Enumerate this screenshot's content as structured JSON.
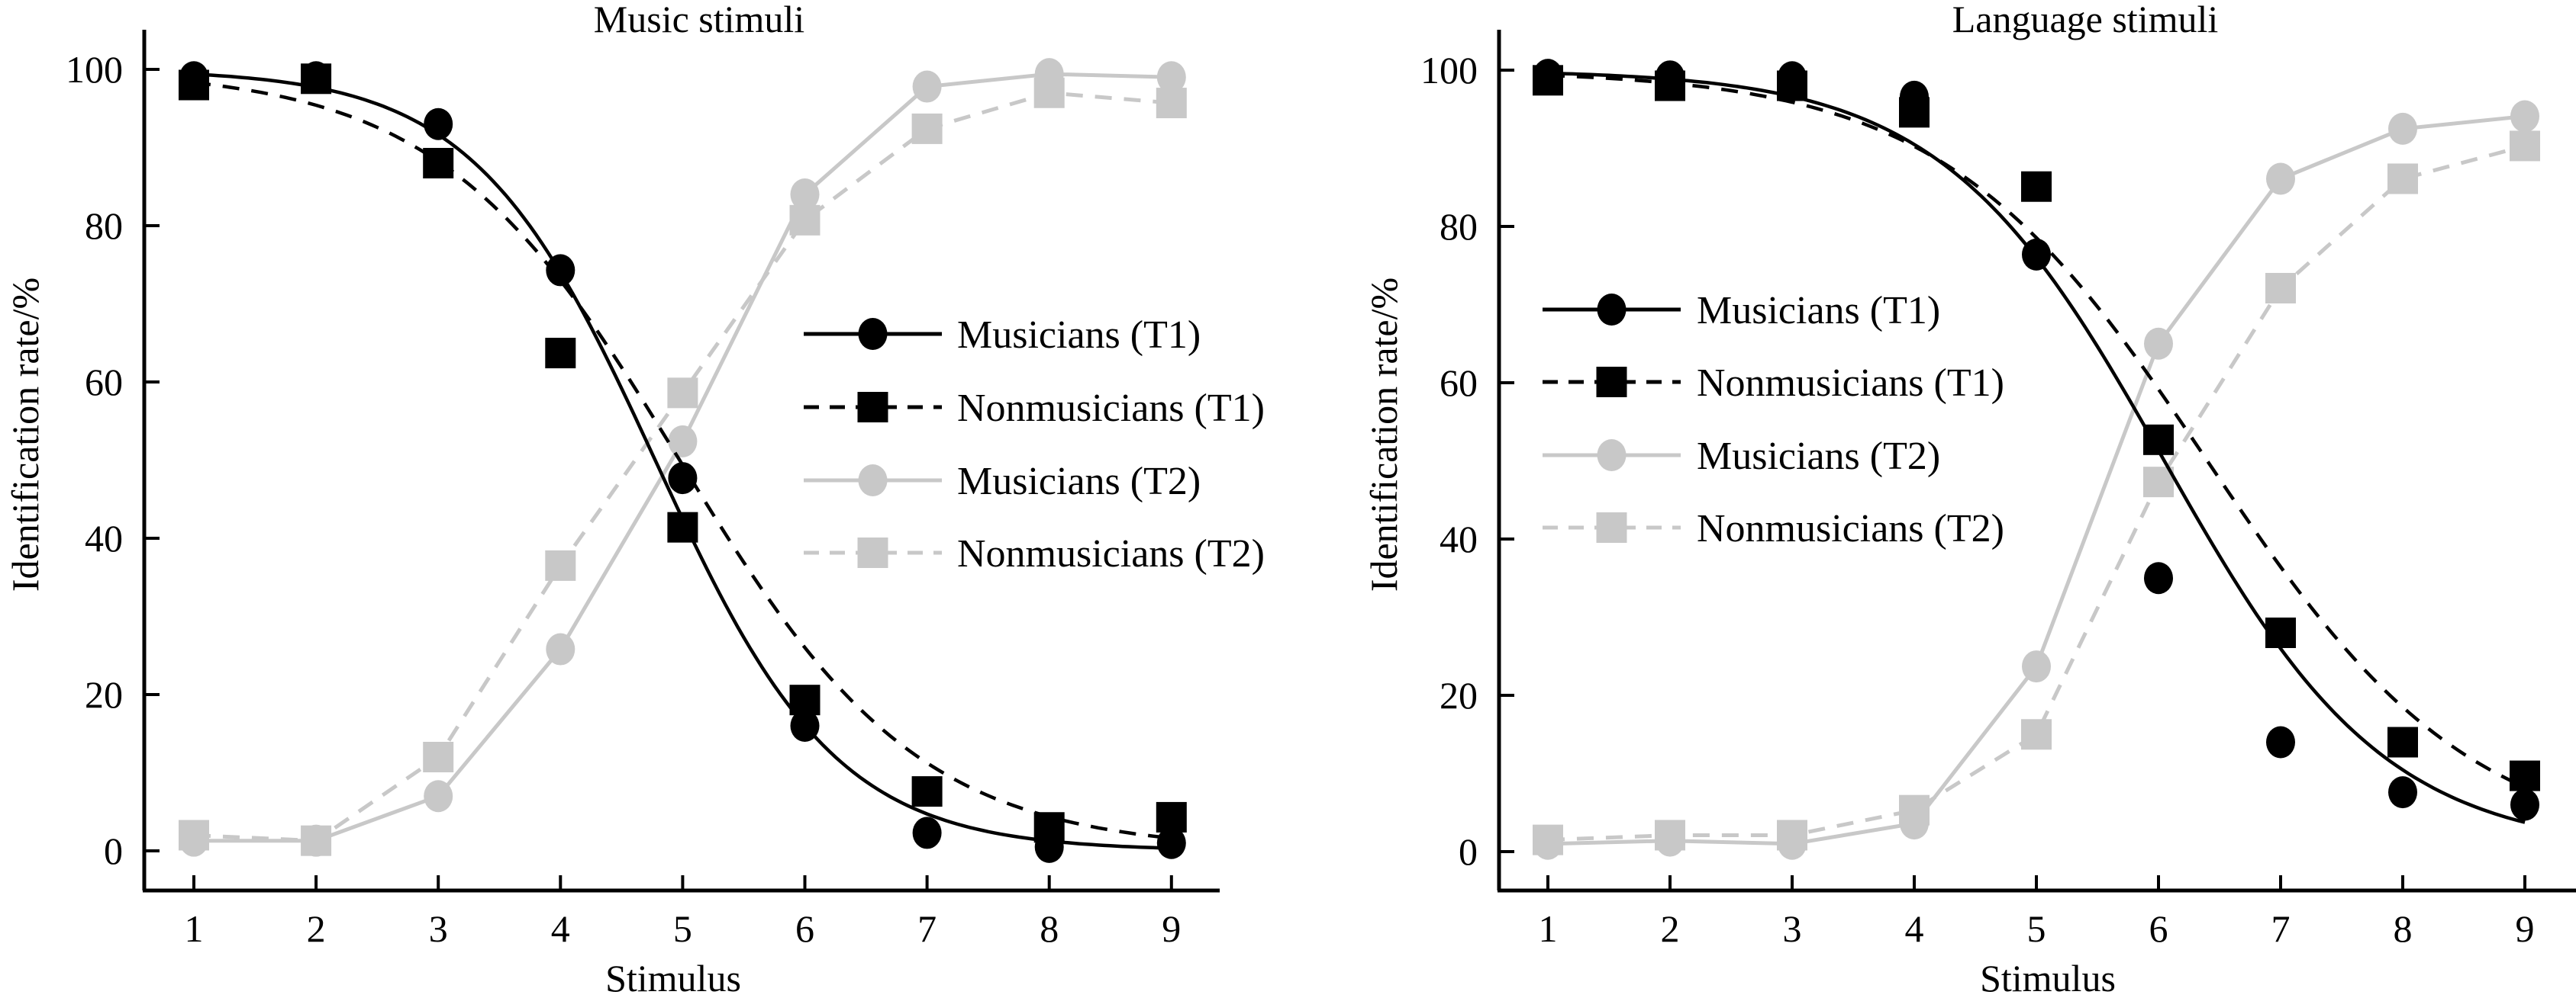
{
  "colors": {
    "t1": "#000000",
    "t2": "#c8c8c8",
    "background": "#ffffff"
  },
  "chart_data": [
    {
      "type": "line",
      "title": "Music stimuli",
      "xlabel": "Stimulus",
      "ylabel": "Identification rate/%",
      "x": [
        1,
        2,
        3,
        4,
        5,
        6,
        7,
        8,
        9
      ],
      "xticks": [
        "1",
        "2",
        "3",
        "4",
        "5",
        "6",
        "7",
        "8",
        "9"
      ],
      "yticks": [
        "0",
        "20",
        "40",
        "60",
        "80",
        "100"
      ],
      "ytick_values": [
        0,
        20,
        40,
        60,
        80,
        100
      ],
      "ylim": [
        -5,
        105
      ],
      "xlim": [
        0.6,
        9.9
      ],
      "grid": false,
      "legend_position": "center-right",
      "series": [
        {
          "name": "Musicians (T1)",
          "group": "t1",
          "marker": "circle",
          "line": "solid",
          "connect": "fit",
          "values": [
            99,
            99,
            93,
            74.3,
            47.7,
            16,
            2.3,
            0.5,
            1
          ],
          "fit": {
            "model": "logistic-decreasing",
            "midpoint": 4.775,
            "slope": 1.35,
            "max": 100
          }
        },
        {
          "name": "Nonmusicians (T1)",
          "group": "t1",
          "marker": "square",
          "line": "dashed",
          "connect": "fit",
          "values": [
            98,
            98.8,
            88,
            63.7,
            41.4,
            19.3,
            7.6,
            3,
            4.3
          ],
          "fit": {
            "model": "logistic-decreasing",
            "midpoint": 4.975,
            "slope": 1.02,
            "max": 100
          }
        },
        {
          "name": "Musicians (T2)",
          "group": "t2",
          "marker": "circle",
          "line": "solid",
          "connect": "points",
          "values": [
            1.3,
            1.3,
            7,
            25.8,
            52.4,
            84,
            97.8,
            99.4,
            99
          ]
        },
        {
          "name": "Nonmusicians (T2)",
          "group": "t2",
          "marker": "square",
          "line": "dashed",
          "connect": "points",
          "values": [
            2,
            1.3,
            12,
            36.5,
            58.6,
            80.7,
            92.4,
            97,
            95.7
          ]
        }
      ]
    },
    {
      "type": "line",
      "title": "Language stimuli",
      "xlabel": "Stimulus",
      "ylabel": "Identification rate/%",
      "x": [
        1,
        2,
        3,
        4,
        5,
        6,
        7,
        8,
        9
      ],
      "xticks": [
        "1",
        "2",
        "3",
        "4",
        "5",
        "6",
        "7",
        "8",
        "9"
      ],
      "yticks": [
        "0",
        "20",
        "40",
        "60",
        "80",
        "100"
      ],
      "ytick_values": [
        0,
        20,
        40,
        60,
        80,
        100
      ],
      "ylim": [
        -5,
        105
      ],
      "xlim": [
        0.6,
        10.0
      ],
      "grid": false,
      "legend_position": "center-left",
      "series": [
        {
          "name": "Musicians (T1)",
          "group": "t1",
          "marker": "circle",
          "line": "solid",
          "connect": "fit",
          "values": [
            99.4,
            99.2,
            99.1,
            96.6,
            76.4,
            35,
            14,
            7.6,
            6
          ],
          "fit": {
            "model": "logistic-decreasing",
            "midpoint": 6.048,
            "slope": 1.1,
            "max": 100
          }
        },
        {
          "name": "Nonmusicians (T1)",
          "group": "t1",
          "marker": "square",
          "line": "dashed",
          "connect": "fit",
          "values": [
            98.7,
            98,
            98,
            94.6,
            85.1,
            52.7,
            28,
            14,
            9.7
          ],
          "fit": {
            "model": "logistic-decreasing",
            "midpoint": 6.4,
            "slope": 0.927,
            "max": 100
          }
        },
        {
          "name": "Musicians (T2)",
          "group": "t2",
          "marker": "circle",
          "line": "solid",
          "connect": "points",
          "values": [
            1,
            1.4,
            1,
            3.6,
            23.7,
            65,
            86.1,
            92.5,
            94.1
          ]
        },
        {
          "name": "Nonmusicians (T2)",
          "group": "t2",
          "marker": "square",
          "line": "dashed",
          "connect": "points",
          "values": [
            1.5,
            2.1,
            2.1,
            5.3,
            15,
            47.3,
            72.1,
            86.1,
            90.3
          ]
        }
      ]
    }
  ]
}
